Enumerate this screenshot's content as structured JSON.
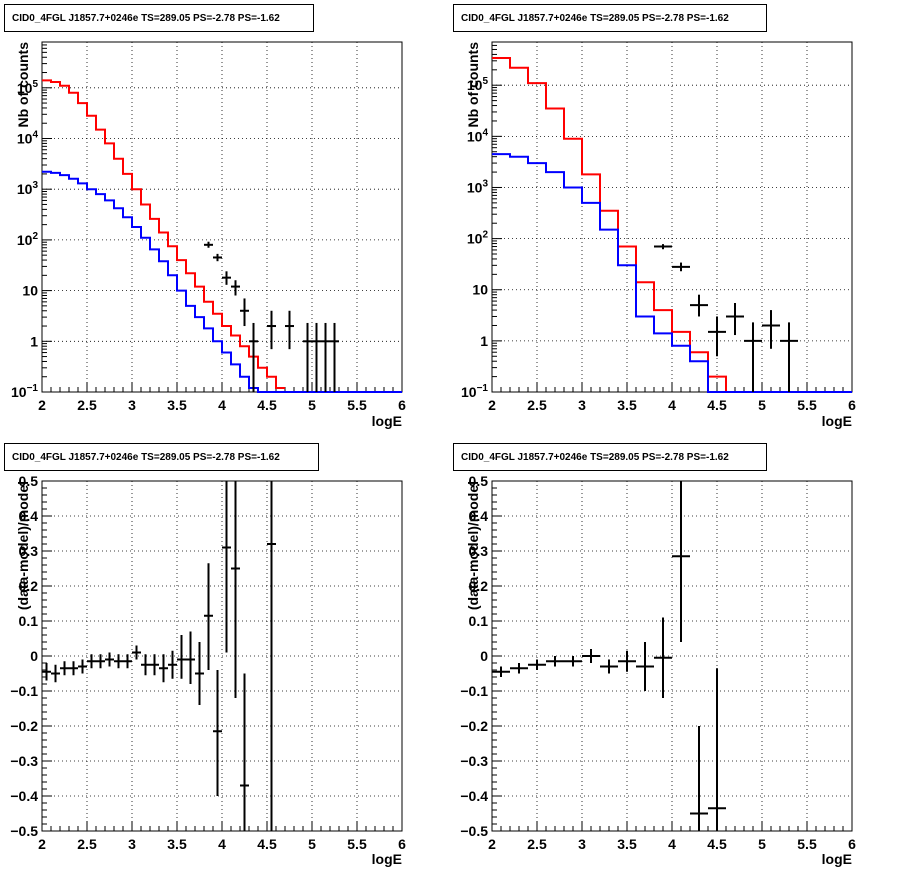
{
  "chart_data": [
    {
      "id": "top-left",
      "type": "histogram",
      "title": "CID0_4FGL J1857.7+0246e TS=289.05 PS=-2.78 PS=-1.62",
      "xlabel": "logE",
      "ylabel": "Nb of counts",
      "xlim": [
        2,
        6
      ],
      "ylim": [
        0.1,
        800000
      ],
      "yscale": "log",
      "grid": true,
      "x_ticks": [
        "2",
        "2.5",
        "3",
        "3.5",
        "4",
        "4.5",
        "5",
        "5.5",
        "6"
      ],
      "y_ticks": [
        {
          "v": 0.1,
          "base": "10",
          "exp": "−1"
        },
        {
          "v": 1,
          "text": "1"
        },
        {
          "v": 10,
          "text": "10"
        },
        {
          "v": 100,
          "base": "10",
          "exp": "2"
        },
        {
          "v": 1000,
          "base": "10",
          "exp": "3"
        },
        {
          "v": 10000,
          "base": "10",
          "exp": "4"
        },
        {
          "v": 100000,
          "base": "10",
          "exp": "5"
        }
      ],
      "bin_width": 0.1,
      "bin_edges_start": 2.0,
      "series": [
        {
          "color": "#ff0000",
          "kind": "step",
          "values": [
            140000,
            130000,
            110000,
            80000,
            50000,
            28000,
            15000,
            8000,
            4000,
            2000,
            1000,
            500,
            260,
            140,
            75,
            40,
            22,
            12,
            6,
            3.5,
            2,
            1.3,
            0.8,
            0.5,
            0.3,
            0.2,
            0.12
          ]
        },
        {
          "color": "#0000ff",
          "kind": "step",
          "values": [
            2200,
            2100,
            1900,
            1600,
            1300,
            1000,
            800,
            600,
            420,
            280,
            180,
            110,
            65,
            38,
            20,
            10,
            5,
            3,
            1.8,
            1,
            0.6,
            0.35,
            0.2,
            0.12,
            0.1,
            0.1,
            0.1,
            0.1,
            0.1,
            0.1,
            0.1,
            0.1,
            0.1,
            0.1,
            0.1,
            0.1,
            0.1,
            0.1,
            0.1,
            0.1
          ]
        },
        {
          "color": "#000000",
          "kind": "points",
          "points": [
            {
              "x": 3.85,
              "y": 80,
              "lo": 70,
              "hi": 92
            },
            {
              "x": 3.95,
              "y": 45,
              "lo": 38,
              "hi": 53
            },
            {
              "x": 4.05,
              "y": 18,
              "lo": 13,
              "hi": 24
            },
            {
              "x": 4.15,
              "y": 12,
              "lo": 8,
              "hi": 16
            },
            {
              "x": 4.25,
              "y": 4,
              "lo": 2,
              "hi": 7
            },
            {
              "x": 4.35,
              "y": 1,
              "lo": 0.1,
              "hi": 2.3
            },
            {
              "x": 4.55,
              "y": 2,
              "lo": 0.7,
              "hi": 4
            },
            {
              "x": 4.75,
              "y": 2,
              "lo": 0.7,
              "hi": 4
            },
            {
              "x": 4.95,
              "y": 1,
              "lo": 0.1,
              "hi": 2.3
            },
            {
              "x": 5.05,
              "y": 1,
              "lo": 0.1,
              "hi": 2.3
            },
            {
              "x": 5.15,
              "y": 1,
              "lo": 0.1,
              "hi": 2.3
            },
            {
              "x": 5.25,
              "y": 1,
              "lo": 0.1,
              "hi": 2.3
            }
          ]
        }
      ]
    },
    {
      "id": "top-right",
      "type": "histogram",
      "title": "CID0_4FGL J1857.7+0246e TS=289.05 PS=-2.78 PS=-1.62",
      "xlabel": "logE",
      "ylabel": "Nb of counts",
      "xlim": [
        2,
        6
      ],
      "ylim": [
        0.1,
        700000
      ],
      "yscale": "log",
      "grid": true,
      "x_ticks": [
        "2",
        "2.5",
        "3",
        "3.5",
        "4",
        "4.5",
        "5",
        "5.5",
        "6"
      ],
      "y_ticks": [
        {
          "v": 0.1,
          "base": "10",
          "exp": "−1"
        },
        {
          "v": 1,
          "text": "1"
        },
        {
          "v": 10,
          "text": "10"
        },
        {
          "v": 100,
          "base": "10",
          "exp": "2"
        },
        {
          "v": 1000,
          "base": "10",
          "exp": "3"
        },
        {
          "v": 10000,
          "base": "10",
          "exp": "4"
        },
        {
          "v": 100000,
          "base": "10",
          "exp": "5"
        }
      ],
      "bin_width": 0.2,
      "bin_edges_start": 2.0,
      "series": [
        {
          "color": "#ff0000",
          "kind": "step",
          "values": [
            340000,
            220000,
            110000,
            35000,
            9000,
            1800,
            350,
            70,
            14,
            4,
            1.5,
            0.6,
            0.2,
            0.1,
            0.1,
            0.1,
            0.1,
            0.1,
            0.1,
            0.1
          ]
        },
        {
          "color": "#0000ff",
          "kind": "step",
          "values": [
            4500,
            4000,
            3000,
            2000,
            1000,
            500,
            150,
            30,
            3,
            1.4,
            0.8,
            0.4,
            0.1,
            0.1,
            0.1,
            0.1,
            0.1,
            0.1,
            0.1,
            0.1
          ]
        },
        {
          "color": "#000000",
          "kind": "points",
          "points": [
            {
              "x": 3.9,
              "y": 70,
              "lo": 62,
              "hi": 78
            },
            {
              "x": 4.1,
              "y": 28,
              "lo": 23,
              "hi": 34
            },
            {
              "x": 4.3,
              "y": 5,
              "lo": 3,
              "hi": 8
            },
            {
              "x": 4.5,
              "y": 1.5,
              "lo": 0.5,
              "hi": 3
            },
            {
              "x": 4.7,
              "y": 3,
              "lo": 1.3,
              "hi": 5.5
            },
            {
              "x": 4.9,
              "y": 1,
              "lo": 0.1,
              "hi": 2.3
            },
            {
              "x": 5.1,
              "y": 2,
              "lo": 0.7,
              "hi": 4
            },
            {
              "x": 5.3,
              "y": 1,
              "lo": 0.1,
              "hi": 2.3
            }
          ]
        }
      ]
    },
    {
      "id": "bottom-left",
      "type": "scatter",
      "title": "CID0_4FGL J1857.7+0246e TS=289.05 PS=-2.78 PS=-1.62",
      "xlabel": "logE",
      "ylabel": "(data-model)/model",
      "xlim": [
        2,
        6
      ],
      "ylim": [
        -0.5,
        0.5
      ],
      "yscale": "linear",
      "grid": true,
      "x_ticks": [
        "2",
        "2.5",
        "3",
        "3.5",
        "4",
        "4.5",
        "5",
        "5.5",
        "6"
      ],
      "y_ticks": [
        {
          "v": -0.5,
          "text": "−0.5"
        },
        {
          "v": -0.4,
          "text": "−0.4"
        },
        {
          "v": -0.3,
          "text": "−0.3"
        },
        {
          "v": -0.2,
          "text": "−0.2"
        },
        {
          "v": -0.1,
          "text": "−0.1"
        },
        {
          "v": 0,
          "text": "0"
        },
        {
          "v": 0.1,
          "text": "0.1"
        },
        {
          "v": 0.2,
          "text": "0.2"
        },
        {
          "v": 0.3,
          "text": "0.3"
        },
        {
          "v": 0.4,
          "text": "0.4"
        },
        {
          "v": 0.5,
          "text": "0.5"
        }
      ],
      "xerr": 0.05,
      "series": [
        {
          "color": "#000000",
          "kind": "points",
          "points": [
            {
              "x": 2.05,
              "y": -0.045,
              "lo": -0.07,
              "hi": -0.02
            },
            {
              "x": 2.15,
              "y": -0.05,
              "lo": -0.075,
              "hi": -0.025
            },
            {
              "x": 2.25,
              "y": -0.035,
              "lo": -0.055,
              "hi": -0.015
            },
            {
              "x": 2.35,
              "y": -0.035,
              "lo": -0.055,
              "hi": -0.015
            },
            {
              "x": 2.45,
              "y": -0.03,
              "lo": -0.05,
              "hi": -0.01
            },
            {
              "x": 2.55,
              "y": -0.015,
              "lo": -0.035,
              "hi": 0.005
            },
            {
              "x": 2.65,
              "y": -0.015,
              "lo": -0.035,
              "hi": 0.005
            },
            {
              "x": 2.75,
              "y": -0.01,
              "lo": -0.03,
              "hi": 0.01
            },
            {
              "x": 2.85,
              "y": -0.015,
              "lo": -0.035,
              "hi": 0.005
            },
            {
              "x": 2.95,
              "y": -0.015,
              "lo": -0.035,
              "hi": 0.005
            },
            {
              "x": 3.05,
              "y": 0.01,
              "lo": -0.01,
              "hi": 0.03
            },
            {
              "x": 3.15,
              "y": -0.025,
              "lo": -0.055,
              "hi": 0.005
            },
            {
              "x": 3.25,
              "y": -0.025,
              "lo": -0.055,
              "hi": 0.005
            },
            {
              "x": 3.35,
              "y": -0.035,
              "lo": -0.075,
              "hi": 0.005
            },
            {
              "x": 3.45,
              "y": -0.025,
              "lo": -0.065,
              "hi": 0.015
            },
            {
              "x": 3.55,
              "y": -0.01,
              "lo": -0.065,
              "hi": 0.06
            },
            {
              "x": 3.65,
              "y": -0.01,
              "lo": -0.08,
              "hi": 0.07
            },
            {
              "x": 3.75,
              "y": -0.05,
              "lo": -0.14,
              "hi": 0.04
            },
            {
              "x": 3.85,
              "y": 0.115,
              "lo": -0.04,
              "hi": 0.265
            },
            {
              "x": 3.95,
              "y": -0.215,
              "lo": -0.4,
              "hi": -0.04
            },
            {
              "x": 4.05,
              "y": 0.31,
              "lo": 0.01,
              "hi": 0.5
            },
            {
              "x": 4.15,
              "y": 0.25,
              "lo": -0.12,
              "hi": 0.5
            },
            {
              "x": 4.25,
              "y": -0.37,
              "lo": -0.5,
              "hi": -0.05
            },
            {
              "x": 4.55,
              "y": 0.32,
              "lo": -0.5,
              "hi": 0.5
            }
          ]
        }
      ]
    },
    {
      "id": "bottom-right",
      "type": "scatter",
      "title": "CID0_4FGL J1857.7+0246e TS=289.05 PS=-2.78 PS=-1.62",
      "xlabel": "logE",
      "ylabel": "(data-model)/model",
      "xlim": [
        2,
        6
      ],
      "ylim": [
        -0.5,
        0.5
      ],
      "yscale": "linear",
      "grid": true,
      "x_ticks": [
        "2",
        "2.5",
        "3",
        "3.5",
        "4",
        "4.5",
        "5",
        "5.5",
        "6"
      ],
      "y_ticks": [
        {
          "v": -0.5,
          "text": "−0.5"
        },
        {
          "v": -0.4,
          "text": "−0.4"
        },
        {
          "v": -0.3,
          "text": "−0.3"
        },
        {
          "v": -0.2,
          "text": "−0.2"
        },
        {
          "v": -0.1,
          "text": "−0.1"
        },
        {
          "v": 0,
          "text": "0"
        },
        {
          "v": 0.1,
          "text": "0.1"
        },
        {
          "v": 0.2,
          "text": "0.2"
        },
        {
          "v": 0.3,
          "text": "0.3"
        },
        {
          "v": 0.4,
          "text": "0.4"
        },
        {
          "v": 0.5,
          "text": "0.5"
        }
      ],
      "xerr": 0.1,
      "series": [
        {
          "color": "#000000",
          "kind": "points",
          "points": [
            {
              "x": 2.1,
              "y": -0.045,
              "lo": -0.06,
              "hi": -0.03
            },
            {
              "x": 2.3,
              "y": -0.035,
              "lo": -0.05,
              "hi": -0.02
            },
            {
              "x": 2.5,
              "y": -0.025,
              "lo": -0.04,
              "hi": -0.01
            },
            {
              "x": 2.7,
              "y": -0.015,
              "lo": -0.03,
              "hi": 0.0
            },
            {
              "x": 2.9,
              "y": -0.015,
              "lo": -0.03,
              "hi": 0.0
            },
            {
              "x": 3.1,
              "y": 0.0,
              "lo": -0.02,
              "hi": 0.02
            },
            {
              "x": 3.3,
              "y": -0.03,
              "lo": -0.05,
              "hi": -0.01
            },
            {
              "x": 3.5,
              "y": -0.015,
              "lo": -0.045,
              "hi": 0.015
            },
            {
              "x": 3.7,
              "y": -0.03,
              "lo": -0.1,
              "hi": 0.04
            },
            {
              "x": 3.9,
              "y": -0.005,
              "lo": -0.12,
              "hi": 0.11
            },
            {
              "x": 4.1,
              "y": 0.285,
              "lo": 0.04,
              "hi": 0.5
            },
            {
              "x": 4.3,
              "y": -0.45,
              "lo": -0.5,
              "hi": -0.2
            },
            {
              "x": 4.5,
              "y": -0.435,
              "lo": -0.5,
              "hi": -0.035
            }
          ]
        }
      ]
    }
  ]
}
